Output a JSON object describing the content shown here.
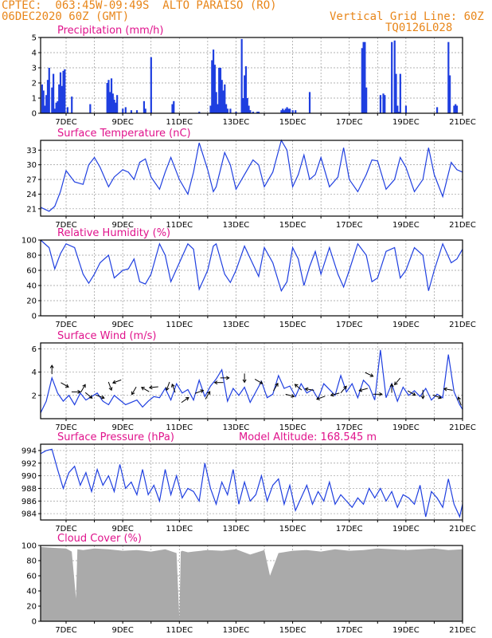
{
  "header": {
    "line1_left": "CPTEC:  063:45W-09:49S  ALTO PARAISO (RO)",
    "line2_left": "06DEC2020 60Z (GMT)",
    "line1_right": "Vertical Grid Line: 60Z",
    "line2_right": "TQ0126L028"
  },
  "colors": {
    "header": "#e8861a",
    "title": "#e0138c",
    "series": "#1f3fe0",
    "cloud": "#aaaaaa"
  },
  "chart_data": [
    {
      "id": "precip",
      "type": "bar",
      "title": "Precipitation (mm/h)",
      "ylim": [
        0,
        5
      ],
      "yticks": [
        0,
        1,
        2,
        3,
        4,
        5
      ],
      "xlim": [
        6.1,
        21.0
      ],
      "xticks": [
        "7DEC",
        "9DEC",
        "11DEC",
        "13DEC",
        "15DEC",
        "17DEC",
        "19DEC",
        "21DEC"
      ],
      "x": [
        6.15,
        6.2,
        6.25,
        6.3,
        6.35,
        6.4,
        6.5,
        6.55,
        6.6,
        6.65,
        6.7,
        6.75,
        6.8,
        6.85,
        6.9,
        6.95,
        7.05,
        7.2,
        7.85,
        8.45,
        8.5,
        8.55,
        8.6,
        8.65,
        8.7,
        8.75,
        8.8,
        9.0,
        9.1,
        9.3,
        9.5,
        9.75,
        9.8,
        10.0,
        10.75,
        10.8,
        11.7,
        12.1,
        12.15,
        12.2,
        12.25,
        12.3,
        12.35,
        12.4,
        12.45,
        12.5,
        12.55,
        12.6,
        12.65,
        12.7,
        12.8,
        13.0,
        13.2,
        13.25,
        13.3,
        13.35,
        13.4,
        13.45,
        13.5,
        13.6,
        13.75,
        13.8,
        14.6,
        14.65,
        14.7,
        14.75,
        14.8,
        14.85,
        14.9,
        15.0,
        15.1,
        15.6,
        17.45,
        17.5,
        17.55,
        17.6,
        18.1,
        18.2,
        18.25,
        18.5,
        18.6,
        18.65,
        18.7,
        18.75,
        18.8,
        19.0,
        20.1,
        20.5,
        20.55,
        20.7,
        20.75,
        20.8
      ],
      "values": [
        1.9,
        1.5,
        0.5,
        1.2,
        2.2,
        3.0,
        1.7,
        2.6,
        0.3,
        0.7,
        0.8,
        1.9,
        2.7,
        1.8,
        2.8,
        2.9,
        0.4,
        1.1,
        0.6,
        2.0,
        2.2,
        1.4,
        2.3,
        1.3,
        0.9,
        0.7,
        1.2,
        0.3,
        0.4,
        0.2,
        0.2,
        0.8,
        0.3,
        3.7,
        0.6,
        0.8,
        0.1,
        0.5,
        3.5,
        4.2,
        3.2,
        1.4,
        0.6,
        3.0,
        3.0,
        2.2,
        1.5,
        1.9,
        0.6,
        0.3,
        0.3,
        0.1,
        4.9,
        1.0,
        2.5,
        3.1,
        1.0,
        0.5,
        0.2,
        0.1,
        0.1,
        0.1,
        0.2,
        0.3,
        0.2,
        0.3,
        0.4,
        0.3,
        0.3,
        0.2,
        0.2,
        1.4,
        4.3,
        4.7,
        4.7,
        1.7,
        1.2,
        1.3,
        1.2,
        4.7,
        4.8,
        2.6,
        0.5,
        0.1,
        2.6,
        0.5,
        0.4,
        4.7,
        2.5,
        0.5,
        0.6,
        0.5
      ]
    },
    {
      "id": "temp",
      "type": "line",
      "title": "Surface Temperature (nC)",
      "ylim": [
        19.5,
        35
      ],
      "yticks": [
        21,
        24,
        27,
        30,
        33
      ],
      "xlim": [
        6.1,
        21.0
      ],
      "xticks": [
        "7DEC",
        "9DEC",
        "11DEC",
        "13DEC",
        "15DEC",
        "17DEC",
        "19DEC",
        "21DEC"
      ],
      "x": [
        6.1,
        6.4,
        6.6,
        6.8,
        7.0,
        7.3,
        7.6,
        7.8,
        8.0,
        8.2,
        8.5,
        8.7,
        9.0,
        9.2,
        9.4,
        9.6,
        9.8,
        10.0,
        10.3,
        10.5,
        10.7,
        11.0,
        11.3,
        11.5,
        11.7,
        12.0,
        12.2,
        12.3,
        12.6,
        12.8,
        13.0,
        13.3,
        13.6,
        13.8,
        14.0,
        14.3,
        14.6,
        14.8,
        15.0,
        15.2,
        15.4,
        15.6,
        15.8,
        16.0,
        16.3,
        16.6,
        16.8,
        17.0,
        17.3,
        17.6,
        17.8,
        18.0,
        18.3,
        18.6,
        18.8,
        19.0,
        19.3,
        19.6,
        19.8,
        20.0,
        20.3,
        20.6,
        20.8,
        21.0
      ],
      "values": [
        21.3,
        20.5,
        21.5,
        24.5,
        28.8,
        26.5,
        26.0,
        30.0,
        31.5,
        29.5,
        25.5,
        27.5,
        29.0,
        28.5,
        27.0,
        30.5,
        31.2,
        27.5,
        25.0,
        28.5,
        31.5,
        27.0,
        24.0,
        28.5,
        34.5,
        29.0,
        24.5,
        25.5,
        32.5,
        30.0,
        25.0,
        28.0,
        31.0,
        30.0,
        25.5,
        28.5,
        35.0,
        33.0,
        25.5,
        28.0,
        32.0,
        27.0,
        28.0,
        31.5,
        25.5,
        27.5,
        33.5,
        27.0,
        24.5,
        28.0,
        31.0,
        30.8,
        25.0,
        27.0,
        31.5,
        29.5,
        24.5,
        27.0,
        33.5,
        28.0,
        23.5,
        30.5,
        29.0,
        28.5
      ]
    },
    {
      "id": "rh",
      "type": "line",
      "title": "Relative Humidity (%)",
      "ylim": [
        0,
        100
      ],
      "yticks": [
        0,
        20,
        40,
        60,
        80,
        100
      ],
      "xlim": [
        6.1,
        21.0
      ],
      "xticks": [
        "7DEC",
        "9DEC",
        "11DEC",
        "13DEC",
        "15DEC",
        "17DEC",
        "19DEC",
        "21DEC"
      ],
      "x": [
        6.1,
        6.4,
        6.6,
        6.8,
        7.0,
        7.3,
        7.6,
        7.8,
        8.0,
        8.2,
        8.5,
        8.7,
        9.0,
        9.2,
        9.4,
        9.6,
        9.8,
        10.0,
        10.3,
        10.5,
        10.7,
        11.0,
        11.3,
        11.5,
        11.7,
        12.0,
        12.2,
        12.3,
        12.6,
        12.8,
        13.0,
        13.3,
        13.6,
        13.8,
        14.0,
        14.3,
        14.6,
        14.8,
        15.0,
        15.2,
        15.4,
        15.6,
        15.8,
        16.0,
        16.3,
        16.6,
        16.8,
        17.0,
        17.3,
        17.6,
        17.8,
        18.0,
        18.3,
        18.6,
        18.8,
        19.0,
        19.3,
        19.6,
        19.8,
        20.0,
        20.3,
        20.6,
        20.8,
        21.0
      ],
      "values": [
        100,
        90,
        62,
        82,
        95,
        90,
        55,
        43,
        55,
        70,
        80,
        50,
        60,
        62,
        75,
        45,
        42,
        55,
        95,
        80,
        45,
        70,
        95,
        88,
        35,
        60,
        92,
        95,
        55,
        44,
        60,
        92,
        68,
        52,
        90,
        70,
        33,
        45,
        90,
        75,
        40,
        65,
        85,
        55,
        90,
        55,
        38,
        60,
        95,
        80,
        45,
        50,
        85,
        90,
        50,
        60,
        90,
        80,
        33,
        60,
        95,
        70,
        75,
        88
      ]
    },
    {
      "id": "wind",
      "type": "line",
      "title": "Surface Wind (m/s)",
      "ylim": [
        0,
        6.5
      ],
      "yticks": [
        2,
        4,
        6
      ],
      "xlim": [
        6.1,
        21.0
      ],
      "xticks": [
        "7DEC",
        "9DEC",
        "11DEC",
        "13DEC",
        "15DEC",
        "17DEC",
        "19DEC",
        "21DEC"
      ],
      "x": [
        6.1,
        6.3,
        6.5,
        6.7,
        6.9,
        7.1,
        7.3,
        7.5,
        7.7,
        7.9,
        8.1,
        8.3,
        8.5,
        8.7,
        8.9,
        9.1,
        9.3,
        9.5,
        9.7,
        9.9,
        10.1,
        10.3,
        10.5,
        10.7,
        10.9,
        11.1,
        11.3,
        11.5,
        11.7,
        11.9,
        12.1,
        12.3,
        12.5,
        12.7,
        12.9,
        13.1,
        13.3,
        13.5,
        13.7,
        13.9,
        14.1,
        14.3,
        14.5,
        14.7,
        14.9,
        15.1,
        15.3,
        15.5,
        15.7,
        15.9,
        16.1,
        16.3,
        16.5,
        16.7,
        16.9,
        17.1,
        17.3,
        17.5,
        17.7,
        17.9,
        18.1,
        18.3,
        18.5,
        18.7,
        18.9,
        19.1,
        19.3,
        19.5,
        19.7,
        19.9,
        20.1,
        20.3,
        20.5,
        20.7,
        20.9,
        21.0
      ],
      "values": [
        0.5,
        1.5,
        3.5,
        2.2,
        1.5,
        2.0,
        1.2,
        2.2,
        1.6,
        1.9,
        2.2,
        1.5,
        1.2,
        2.0,
        1.6,
        1.2,
        1.4,
        1.6,
        1.0,
        1.5,
        1.9,
        1.8,
        2.6,
        1.6,
        3.0,
        2.2,
        2.5,
        1.6,
        3.3,
        1.9,
        2.8,
        3.4,
        4.2,
        1.5,
        2.6,
        2.0,
        2.7,
        1.4,
        2.3,
        3.2,
        1.8,
        2.1,
        3.7,
        2.6,
        2.8,
        1.9,
        3.0,
        2.2,
        2.5,
        1.7,
        3.0,
        2.5,
        2.0,
        3.7,
        2.3,
        3.0,
        1.8,
        3.3,
        2.8,
        1.6,
        5.9,
        1.8,
        3.0,
        1.5,
        2.7,
        2.0,
        2.4,
        1.9,
        2.6,
        1.6,
        2.1,
        1.8,
        5.5,
        2.3,
        1.2,
        0.8
      ],
      "arrows": [
        [
          6.5,
          4.2,
          270
        ],
        [
          6.95,
          2.9,
          30
        ],
        [
          7.35,
          2.3,
          0
        ],
        [
          7.6,
          2.6,
          300
        ],
        [
          7.8,
          2.0,
          40
        ],
        [
          8.2,
          1.9,
          20
        ],
        [
          8.55,
          2.8,
          70
        ],
        [
          8.8,
          3.2,
          160
        ],
        [
          9.4,
          2.4,
          120
        ],
        [
          9.8,
          2.5,
          210
        ],
        [
          10.1,
          2.7,
          175
        ],
        [
          10.6,
          2.8,
          110
        ],
        [
          10.8,
          2.6,
          250
        ],
        [
          11.2,
          1.6,
          325
        ],
        [
          11.7,
          2.3,
          340
        ],
        [
          12.0,
          2.0,
          300
        ],
        [
          12.4,
          3.1,
          180
        ],
        [
          12.6,
          3.5,
          0
        ],
        [
          13.3,
          3.5,
          90
        ],
        [
          13.8,
          3.2,
          30
        ],
        [
          14.4,
          2.7,
          300
        ],
        [
          14.9,
          2.0,
          15
        ],
        [
          15.2,
          2.7,
          220
        ],
        [
          15.6,
          2.5,
          190
        ],
        [
          16.0,
          1.8,
          160
        ],
        [
          16.5,
          2.1,
          165
        ],
        [
          16.8,
          2.5,
          310
        ],
        [
          17.5,
          2.5,
          165
        ],
        [
          17.7,
          3.8,
          25
        ],
        [
          18.0,
          2.1,
          0
        ],
        [
          18.5,
          2.6,
          270
        ],
        [
          18.7,
          3.2,
          130
        ],
        [
          19.2,
          2.2,
          30
        ],
        [
          19.6,
          2.1,
          90
        ],
        [
          20.1,
          1.9,
          20
        ],
        [
          20.5,
          2.5,
          190
        ],
        [
          20.9,
          1.5,
          250
        ]
      ]
    },
    {
      "id": "press",
      "type": "line",
      "title": "Surface Pressure (hPa)",
      "annotation": "Model Altitude: 168.545 m",
      "ylim": [
        983,
        995
      ],
      "yticks": [
        984,
        986,
        988,
        990,
        992,
        994
      ],
      "xlim": [
        6.1,
        21.0
      ],
      "xticks": [
        "7DEC",
        "9DEC",
        "11DEC",
        "13DEC",
        "15DEC",
        "17DEC",
        "19DEC",
        "21DEC"
      ],
      "x": [
        6.1,
        6.3,
        6.5,
        6.7,
        6.9,
        7.1,
        7.3,
        7.5,
        7.7,
        7.9,
        8.1,
        8.3,
        8.5,
        8.7,
        8.9,
        9.1,
        9.3,
        9.5,
        9.7,
        9.9,
        10.1,
        10.3,
        10.5,
        10.7,
        10.9,
        11.1,
        11.3,
        11.5,
        11.7,
        11.9,
        12.1,
        12.3,
        12.5,
        12.7,
        12.9,
        13.1,
        13.3,
        13.5,
        13.7,
        13.9,
        14.1,
        14.3,
        14.5,
        14.7,
        14.9,
        15.1,
        15.3,
        15.5,
        15.7,
        15.9,
        16.1,
        16.3,
        16.5,
        16.7,
        16.9,
        17.1,
        17.3,
        17.5,
        17.7,
        17.9,
        18.1,
        18.3,
        18.5,
        18.7,
        18.9,
        19.1,
        19.3,
        19.5,
        19.7,
        19.9,
        20.1,
        20.3,
        20.5,
        20.7,
        20.9,
        21.0
      ],
      "values": [
        993.5,
        994.0,
        994.2,
        991.0,
        988.0,
        990.5,
        991.5,
        988.5,
        990.5,
        987.5,
        991.0,
        988.5,
        990.0,
        987.5,
        991.8,
        988.0,
        989.0,
        987.0,
        991.0,
        987.0,
        988.5,
        986.0,
        991.0,
        987.0,
        990.0,
        986.5,
        988.0,
        987.5,
        986.0,
        992.0,
        988.0,
        985.5,
        989.0,
        987.0,
        991.0,
        985.5,
        989.0,
        986.0,
        987.0,
        990.0,
        986.0,
        988.5,
        989.5,
        985.5,
        988.5,
        984.5,
        986.5,
        988.5,
        985.5,
        987.5,
        986.0,
        989.0,
        985.5,
        987.0,
        986.0,
        985.0,
        986.5,
        985.5,
        988.0,
        986.5,
        988.0,
        986.0,
        987.5,
        985.0,
        987.0,
        986.5,
        985.5,
        988.5,
        983.5,
        987.5,
        986.5,
        985.0,
        989.5,
        985.5,
        983.5,
        985.5
      ]
    },
    {
      "id": "cloud",
      "type": "area",
      "title": "Cloud Cover (%)",
      "ylim": [
        0,
        100
      ],
      "yticks": [
        0,
        20,
        40,
        60,
        80,
        100
      ],
      "xlim": [
        6.1,
        21.0
      ],
      "xticks": [
        "7DEC",
        "9DEC",
        "11DEC",
        "13DEC",
        "15DEC",
        "17DEC",
        "19DEC",
        "21DEC"
      ],
      "x": [
        6.1,
        6.5,
        7.0,
        7.2,
        7.35,
        7.4,
        7.6,
        8.0,
        8.5,
        9.0,
        9.5,
        10.0,
        10.5,
        10.9,
        11.0,
        11.05,
        11.1,
        11.3,
        11.5,
        12.0,
        12.5,
        13.0,
        13.5,
        14.0,
        14.2,
        14.5,
        15.0,
        15.5,
        16.0,
        16.5,
        17.0,
        17.5,
        18.0,
        18.5,
        19.0,
        19.5,
        20.0,
        20.5,
        21.0
      ],
      "values": [
        98,
        97,
        96,
        92,
        30,
        95,
        94,
        96,
        95,
        93,
        94,
        92,
        95,
        90,
        3,
        92,
        93,
        91,
        92,
        94,
        93,
        95,
        88,
        94,
        60,
        90,
        93,
        94,
        92,
        95,
        93,
        94,
        96,
        95,
        94,
        95,
        96,
        94,
        95
      ]
    }
  ]
}
